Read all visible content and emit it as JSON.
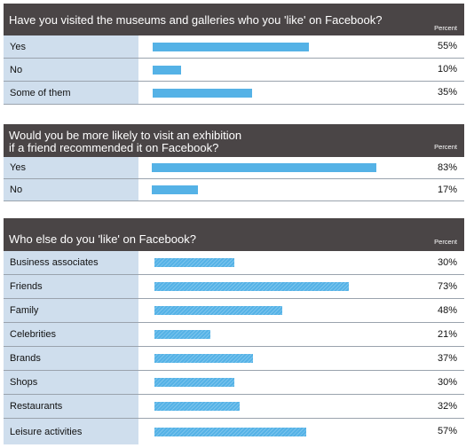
{
  "chart_data": [
    {
      "type": "bar",
      "orientation": "horizontal",
      "title": "Have you visited the museums and galleries who you 'like' on Facebook?",
      "value_header": "Percent",
      "categories": [
        "Yes",
        "No",
        "Some of them"
      ],
      "values": [
        55,
        10,
        35
      ],
      "value_labels": [
        "55%",
        "10%",
        "35%"
      ]
    },
    {
      "type": "bar",
      "orientation": "horizontal",
      "title": "Would you be more likely to visit an exhibition if a friend recommended it on Facebook?",
      "title_lines": [
        "Would you be more likely to visit an exhibition",
        "if a friend recommended it on Facebook?"
      ],
      "value_header": "Percent",
      "categories": [
        "Yes",
        "No"
      ],
      "values": [
        83,
        17
      ],
      "value_labels": [
        "83%",
        "17%"
      ]
    },
    {
      "type": "bar",
      "orientation": "horizontal",
      "title": "Who else do you 'like' on Facebook?",
      "value_header": "Percent",
      "categories": [
        "Business associates",
        "Friends",
        "Family",
        "Celebrities",
        "Brands",
        "Shops",
        "Restaurants",
        "Leisure activities"
      ],
      "values": [
        30,
        73,
        48,
        21,
        37,
        30,
        32,
        57
      ],
      "value_labels": [
        "30%",
        "73%",
        "48%",
        "21%",
        "37%",
        "30%",
        "32%",
        "57%"
      ]
    }
  ],
  "colors": {
    "header": "#4a4546",
    "label_bg": "#cfdeed",
    "bar": "#55b2e6",
    "divider": "#9aa3ad"
  }
}
